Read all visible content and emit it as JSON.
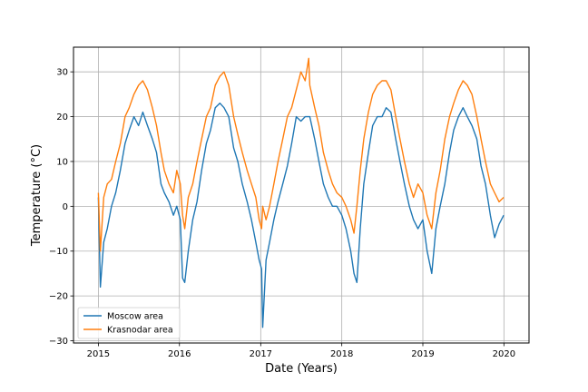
{
  "chart_data": {
    "type": "line",
    "xlabel": "Date (Years)",
    "ylabel": "Temperature (°C)",
    "xlim": [
      "2014-09-11",
      "2020-04-23"
    ],
    "ylim": [
      -30.5,
      35.5
    ],
    "x_ticks": [
      {
        "label": "2015",
        "date": "2015-01-01"
      },
      {
        "label": "2016",
        "date": "2016-01-01"
      },
      {
        "label": "2017",
        "date": "2017-01-01"
      },
      {
        "label": "2018",
        "date": "2018-01-01"
      },
      {
        "label": "2019",
        "date": "2019-01-01"
      },
      {
        "label": "2020",
        "date": "2020-01-01"
      }
    ],
    "y_ticks": [
      -30,
      -20,
      -10,
      0,
      10,
      20,
      30
    ],
    "y_tick_labels": [
      "−30",
      "−20",
      "−10",
      "0",
      "10",
      "20",
      "30"
    ],
    "grid": true,
    "legend_position": "lower-left",
    "series": [
      {
        "name": "Moscow area",
        "color": "#1f77b4",
        "dates": [
          "2015-01-01",
          "2015-01-10",
          "2015-01-25",
          "2015-02-10",
          "2015-03-01",
          "2015-03-20",
          "2015-04-10",
          "2015-05-01",
          "2015-05-20",
          "2015-06-10",
          "2015-07-01",
          "2015-07-20",
          "2015-08-10",
          "2015-09-01",
          "2015-09-20",
          "2015-10-10",
          "2015-10-25",
          "2015-11-15",
          "2015-12-05",
          "2015-12-20",
          "2016-01-05",
          "2016-01-15",
          "2016-01-25",
          "2016-02-10",
          "2016-03-01",
          "2016-03-20",
          "2016-04-10",
          "2016-05-01",
          "2016-05-20",
          "2016-06-10",
          "2016-07-01",
          "2016-07-20",
          "2016-08-10",
          "2016-09-01",
          "2016-09-20",
          "2016-10-10",
          "2016-11-01",
          "2016-11-20",
          "2016-12-10",
          "2016-12-25",
          "2017-01-05",
          "2017-01-10",
          "2017-01-25",
          "2017-02-10",
          "2017-03-01",
          "2017-03-20",
          "2017-04-10",
          "2017-05-01",
          "2017-05-20",
          "2017-06-10",
          "2017-07-01",
          "2017-07-20",
          "2017-08-10",
          "2017-09-01",
          "2017-09-20",
          "2017-10-10",
          "2017-11-01",
          "2017-11-20",
          "2017-12-10",
          "2018-01-01",
          "2018-01-20",
          "2018-02-10",
          "2018-02-25",
          "2018-03-10",
          "2018-03-25",
          "2018-04-10",
          "2018-05-01",
          "2018-05-20",
          "2018-06-10",
          "2018-07-01",
          "2018-07-20",
          "2018-08-10",
          "2018-09-01",
          "2018-09-20",
          "2018-10-10",
          "2018-11-01",
          "2018-11-20",
          "2018-12-10",
          "2019-01-01",
          "2019-01-20",
          "2019-02-10",
          "2019-03-01",
          "2019-03-20",
          "2019-04-10",
          "2019-05-01",
          "2019-05-20",
          "2019-06-10",
          "2019-07-01",
          "2019-07-20",
          "2019-08-10",
          "2019-09-01",
          "2019-09-20",
          "2019-10-10",
          "2019-11-01",
          "2019-11-20",
          "2019-12-10",
          "2019-12-31"
        ],
        "values": [
          2,
          -18,
          -8,
          -5,
          0,
          3,
          8,
          14,
          17,
          20,
          18,
          21,
          18,
          15,
          12,
          5,
          3,
          1,
          -2,
          0,
          -3,
          -16,
          -17,
          -10,
          -3,
          1,
          8,
          14,
          17,
          22,
          23,
          22,
          20,
          13,
          10,
          5,
          1,
          -3,
          -8,
          -12,
          -14,
          -27,
          -12,
          -8,
          -3,
          1,
          5,
          9,
          14,
          20,
          19,
          20,
          20,
          15,
          10,
          5,
          2,
          0,
          0,
          -2,
          -5,
          -10,
          -15,
          -17,
          -5,
          5,
          12,
          18,
          20,
          20,
          22,
          21,
          15,
          10,
          5,
          0,
          -3,
          -5,
          -3,
          -10,
          -15,
          -5,
          0,
          5,
          12,
          17,
          20,
          22,
          20,
          18,
          15,
          9,
          5,
          -2,
          -7,
          -4,
          -2
        ]
      },
      {
        "name": "Krasnodar area",
        "color": "#ff7f0e",
        "dates": [
          "2015-01-01",
          "2015-01-10",
          "2015-01-25",
          "2015-02-10",
          "2015-03-01",
          "2015-03-20",
          "2015-04-10",
          "2015-05-01",
          "2015-05-20",
          "2015-06-10",
          "2015-07-01",
          "2015-07-20",
          "2015-08-10",
          "2015-09-01",
          "2015-09-20",
          "2015-10-10",
          "2015-10-25",
          "2015-11-15",
          "2015-12-05",
          "2015-12-20",
          "2016-01-05",
          "2016-01-15",
          "2016-01-25",
          "2016-02-10",
          "2016-03-01",
          "2016-03-20",
          "2016-04-10",
          "2016-05-01",
          "2016-05-20",
          "2016-06-10",
          "2016-07-01",
          "2016-07-20",
          "2016-08-10",
          "2016-09-01",
          "2016-09-20",
          "2016-10-10",
          "2016-11-01",
          "2016-11-20",
          "2016-12-10",
          "2016-12-25",
          "2017-01-05",
          "2017-01-10",
          "2017-01-25",
          "2017-02-10",
          "2017-03-01",
          "2017-03-20",
          "2017-04-10",
          "2017-05-01",
          "2017-05-20",
          "2017-06-10",
          "2017-07-01",
          "2017-07-20",
          "2017-08-05",
          "2017-08-10",
          "2017-09-01",
          "2017-09-20",
          "2017-10-10",
          "2017-11-01",
          "2017-11-20",
          "2017-12-10",
          "2018-01-01",
          "2018-01-20",
          "2018-02-10",
          "2018-02-25",
          "2018-03-10",
          "2018-03-25",
          "2018-04-10",
          "2018-05-01",
          "2018-05-20",
          "2018-06-10",
          "2018-07-01",
          "2018-07-20",
          "2018-08-10",
          "2018-09-01",
          "2018-09-20",
          "2018-10-10",
          "2018-11-01",
          "2018-11-20",
          "2018-12-10",
          "2019-01-01",
          "2019-01-20",
          "2019-02-10",
          "2019-03-01",
          "2019-03-20",
          "2019-04-10",
          "2019-05-01",
          "2019-05-20",
          "2019-06-10",
          "2019-07-01",
          "2019-07-20",
          "2019-08-10",
          "2019-09-01",
          "2019-09-20",
          "2019-10-10",
          "2019-11-01",
          "2019-11-20",
          "2019-12-10",
          "2019-12-31"
        ],
        "values": [
          3,
          -10,
          2,
          5,
          6,
          10,
          14,
          20,
          22,
          25,
          27,
          28,
          26,
          22,
          18,
          12,
          8,
          5,
          3,
          8,
          5,
          -2,
          -5,
          2,
          5,
          10,
          15,
          20,
          22,
          27,
          29,
          30,
          27,
          20,
          16,
          12,
          8,
          5,
          2,
          -3,
          -5,
          0,
          -3,
          0,
          5,
          10,
          15,
          20,
          22,
          26,
          30,
          28,
          33,
          27,
          22,
          18,
          12,
          8,
          5,
          3,
          2,
          0,
          -3,
          -6,
          0,
          8,
          15,
          21,
          25,
          27,
          28,
          28,
          26,
          20,
          15,
          10,
          5,
          2,
          5,
          3,
          -2,
          -5,
          3,
          8,
          15,
          20,
          23,
          26,
          28,
          27,
          25,
          20,
          15,
          10,
          5,
          3,
          1,
          2
        ]
      }
    ]
  }
}
